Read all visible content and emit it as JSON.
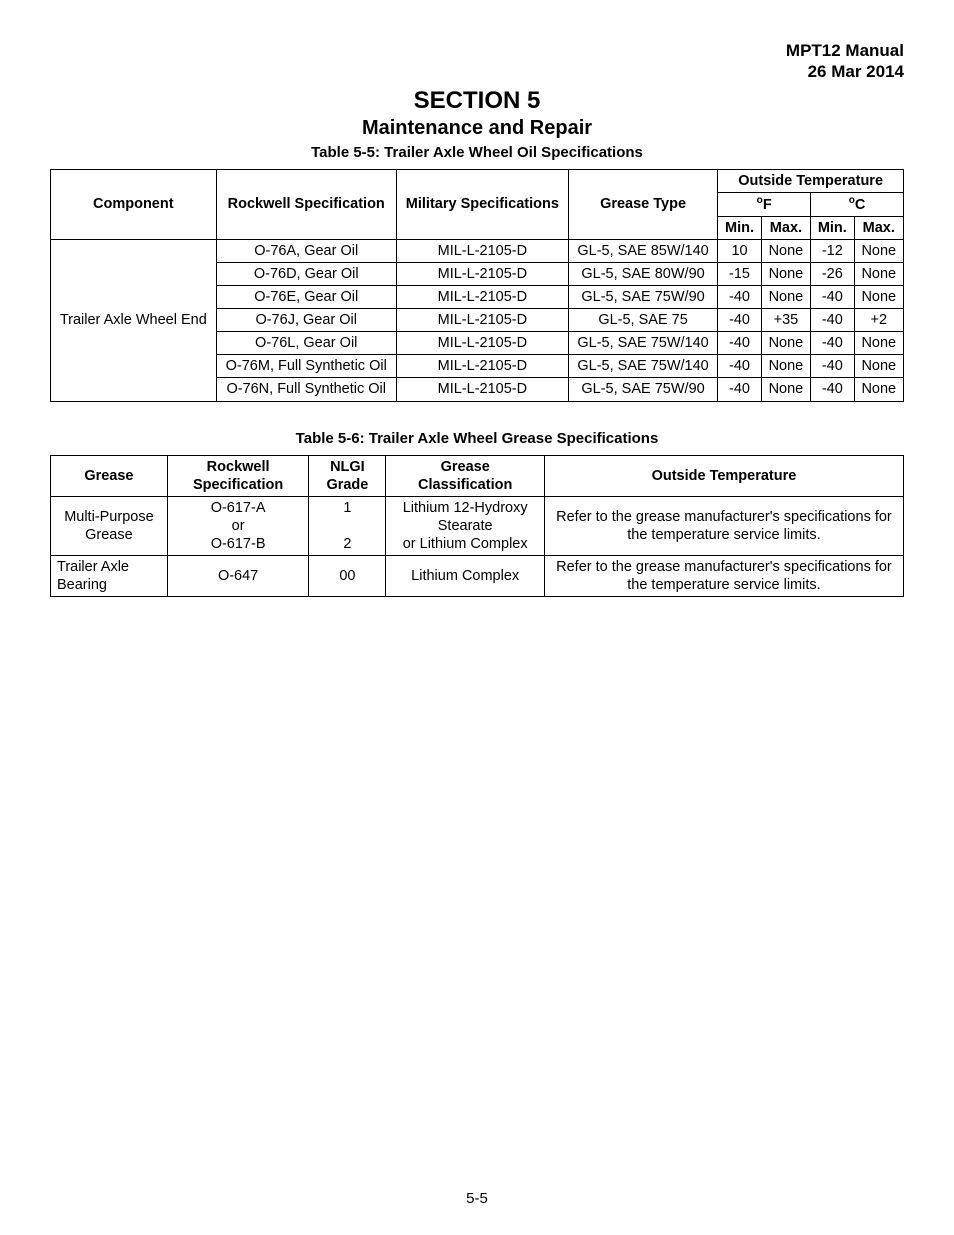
{
  "header": {
    "manual_title": "MPT12 Manual",
    "date": "26 Mar 2014"
  },
  "section": {
    "label": "SECTION 5",
    "title": "Maintenance and Repair"
  },
  "table5_5": {
    "caption": "Table 5-5: Trailer Axle Wheel Oil Specifications",
    "head": {
      "component": "Component",
      "rockwell": "Rockwell Specification",
      "military": "Military Specifications",
      "grease_type": "Grease Type",
      "outside_temp": "Outside Temperature",
      "f": "F",
      "c": "C",
      "min": "Min.",
      "max": "Max."
    },
    "component_label": "Trailer Axle Wheel End",
    "rows": [
      {
        "rockwell": "O-76A, Gear Oil",
        "mil": "MIL-L-2105-D",
        "grease": "GL-5, SAE 85W/140",
        "f_min": "10",
        "f_max": "None",
        "c_min": "-12",
        "c_max": "None"
      },
      {
        "rockwell": "O-76D, Gear Oil",
        "mil": "MIL-L-2105-D",
        "grease": "GL-5, SAE 80W/90",
        "f_min": "-15",
        "f_max": "None",
        "c_min": "-26",
        "c_max": "None"
      },
      {
        "rockwell": "O-76E, Gear Oil",
        "mil": "MIL-L-2105-D",
        "grease": "GL-5, SAE 75W/90",
        "f_min": "-40",
        "f_max": "None",
        "c_min": "-40",
        "c_max": "None"
      },
      {
        "rockwell": "O-76J, Gear Oil",
        "mil": "MIL-L-2105-D",
        "grease": "GL-5, SAE 75",
        "f_min": "-40",
        "f_max": "+35",
        "c_min": "-40",
        "c_max": "+2"
      },
      {
        "rockwell": "O-76L, Gear Oil",
        "mil": "MIL-L-2105-D",
        "grease": "GL-5, SAE 75W/140",
        "f_min": "-40",
        "f_max": "None",
        "c_min": "-40",
        "c_max": "None"
      },
      {
        "rockwell": "O-76M, Full Synthetic Oil",
        "mil": "MIL-L-2105-D",
        "grease": "GL-5, SAE 75W/140",
        "f_min": "-40",
        "f_max": "None",
        "c_min": "-40",
        "c_max": "None"
      },
      {
        "rockwell": "O-76N, Full Synthetic Oil",
        "mil": "MIL-L-2105-D",
        "grease": "GL-5, SAE 75W/90",
        "f_min": "-40",
        "f_max": "None",
        "c_min": "-40",
        "c_max": "None"
      }
    ]
  },
  "table5_6": {
    "caption": "Table 5-6: Trailer Axle Wheel Grease Specifications",
    "head": {
      "grease": "Grease",
      "rockwell": "Rockwell Specification",
      "nlgi": "NLGI Grade",
      "classification": "Grease Classification",
      "outside_temp": "Outside Temperature"
    },
    "rows": [
      {
        "grease": "Multi-Purpose Grease",
        "rockwell_line1": "O-617-A",
        "rockwell_line2": "or",
        "rockwell_line3": "O-617-B",
        "nlgi_line1": "1",
        "nlgi_line2": "2",
        "class_line1": "Lithium 12-Hydroxy Stearate",
        "class_line2": "or Lithium Complex",
        "temp": "Refer to the grease manufacturer's specifications for the temperature service limits."
      },
      {
        "grease": "Trailer Axle Bearing",
        "rockwell": "O-647",
        "nlgi": "00",
        "classification": "Lithium Complex",
        "temp": "Refer to the grease manufacturer's specifications for the temperature service limits."
      }
    ]
  },
  "page_number": "5-5",
  "style": {
    "font_family": "Myriad Pro / Segoe UI / Arial",
    "text_color": "#000000",
    "background_color": "#ffffff",
    "border_color": "#000000",
    "header_fontsize": 17,
    "section_label_fontsize": 24,
    "section_title_fontsize": 20,
    "caption_fontsize": 15,
    "table_fontsize": 14.5
  }
}
